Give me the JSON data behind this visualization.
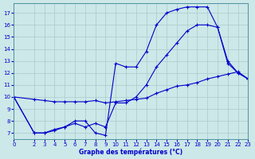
{
  "xlabel": "Graphe des températures (°C)",
  "bg_color": "#cce8e8",
  "grid_color": "#aacaca",
  "line_color": "#0000cc",
  "xlim": [
    0,
    23
  ],
  "ylim": [
    6.5,
    17.8
  ],
  "yticks": [
    7,
    8,
    9,
    10,
    11,
    12,
    13,
    14,
    15,
    16,
    17
  ],
  "xticks": [
    0,
    2,
    3,
    4,
    5,
    6,
    7,
    8,
    9,
    10,
    11,
    12,
    13,
    14,
    15,
    16,
    17,
    18,
    19,
    20,
    21,
    22,
    23
  ],
  "line1_x": [
    0,
    2,
    3,
    4,
    5,
    6,
    7,
    8,
    9,
    10,
    11,
    12,
    13,
    14,
    15,
    16,
    17,
    18,
    19,
    20,
    21,
    22,
    23
  ],
  "line1_y": [
    10.0,
    9.8,
    9.7,
    9.6,
    9.6,
    9.6,
    9.6,
    9.7,
    9.5,
    9.6,
    9.7,
    9.8,
    9.9,
    10.3,
    10.6,
    10.9,
    11.0,
    11.2,
    11.5,
    11.7,
    11.9,
    12.1,
    11.5
  ],
  "line2_x": [
    0,
    2,
    3,
    4,
    5,
    6,
    7,
    8,
    9,
    10,
    11,
    12,
    13,
    14,
    15,
    16,
    17,
    18,
    19,
    20,
    21,
    22,
    23
  ],
  "line2_y": [
    10.0,
    7.0,
    7.0,
    7.2,
    7.5,
    8.0,
    8.0,
    7.0,
    6.8,
    12.8,
    12.5,
    12.5,
    13.8,
    16.0,
    17.0,
    17.3,
    17.5,
    17.5,
    17.5,
    15.8,
    13.0,
    12.0,
    11.5
  ],
  "line3_x": [
    0,
    2,
    3,
    4,
    5,
    6,
    7,
    8,
    9,
    10,
    11,
    12,
    13,
    14,
    15,
    16,
    17,
    18,
    19,
    20,
    21,
    22,
    23
  ],
  "line3_y": [
    10.0,
    7.0,
    7.0,
    7.3,
    7.5,
    7.8,
    7.5,
    7.8,
    7.5,
    9.5,
    9.5,
    10.0,
    11.0,
    12.5,
    13.5,
    14.5,
    15.5,
    16.0,
    16.0,
    15.8,
    12.8,
    12.0,
    11.5
  ]
}
